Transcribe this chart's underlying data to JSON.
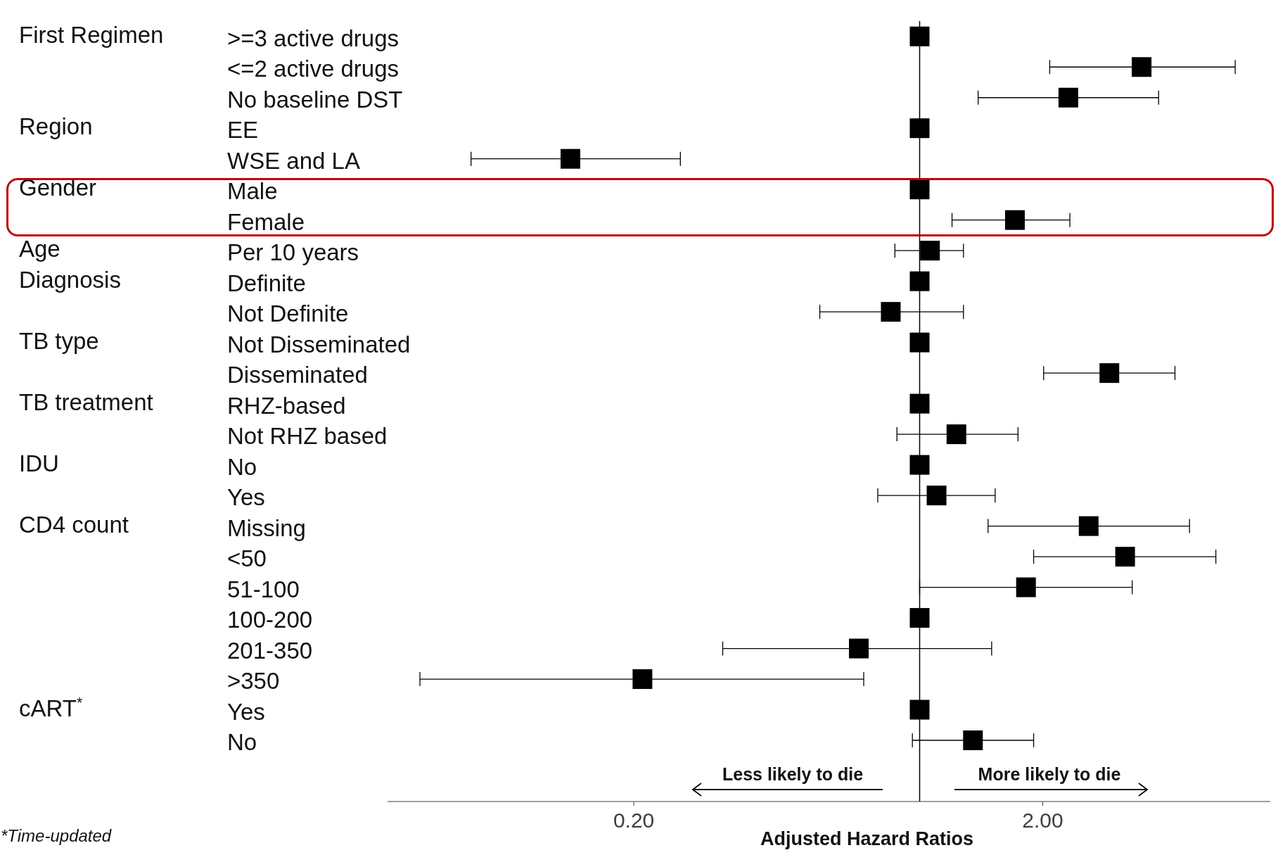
{
  "chart_data": {
    "type": "scatter",
    "orientation": "horizontal",
    "xlabel": "Adjusted Hazard Ratios",
    "log": "x",
    "marker": "square",
    "categories": [
      ">=3 active drugs",
      "<=2 active drugs",
      "No baseline DST",
      "EE",
      "WSE and LA",
      "Male",
      "Female",
      "Per 10 years",
      "Definite",
      "Not Definite",
      "Not Disseminated",
      "Disseminated",
      "RHZ-based",
      "Not RHZ based",
      "No",
      "Yes",
      "Missing",
      "<50",
      "51-100",
      "100-200",
      "201-350",
      ">350",
      "Yes",
      "No"
    ],
    "y2_categories": [
      "First Regimen",
      null,
      null,
      "Region",
      null,
      "Gender",
      null,
      "Age",
      "Diagnosis",
      null,
      "TB type",
      null,
      "TB treatment",
      null,
      "IDU",
      null,
      "CD4 count",
      null,
      null,
      null,
      null,
      null,
      "cART$^{*}$",
      null
    ],
    "series": [
      {
        "color": "#000000",
        "values": [
          1,
          3.49,
          2.31,
          1,
          0.14,
          1,
          1.71,
          1.06,
          1,
          0.85,
          1,
          2.91,
          1,
          1.23,
          1,
          1.1,
          2.59,
          3.18,
          1.82,
          1,
          0.71,
          0.21,
          1,
          1.35
        ],
        "errors": [
          null,
          [
            2.08,
            5.91
          ],
          [
            1.39,
            3.84
          ],
          null,
          [
            0.08,
            0.26
          ],
          null,
          [
            1.2,
            2.33
          ],
          [
            0.87,
            1.28
          ],
          null,
          [
            0.57,
            1.28
          ],
          null,
          [
            2.01,
            4.21
          ],
          null,
          [
            0.88,
            1.74
          ],
          null,
          [
            0.79,
            1.53
          ],
          [
            1.47,
            4.57
          ],
          [
            1.9,
            5.3
          ],
          [
            1,
            3.31
          ],
          null,
          [
            0.33,
            1.5
          ],
          [
            0.06,
            0.73
          ],
          null,
          [
            0.96,
            1.9
          ]
        ]
      }
    ],
    "xlim": [
      0.05,
      7.2
    ],
    "xticks": [
      {
        "value": 0.2,
        "label": "0.20"
      },
      {
        "value": 2,
        "label": "2.00"
      }
    ],
    "ref_lines": [
      {
        "axis": "x",
        "value": 1,
        "color": "#000000"
      }
    ],
    "annotations": [
      "Less likely to die",
      "More likely to die",
      "*Time-updated"
    ]
  }
}
